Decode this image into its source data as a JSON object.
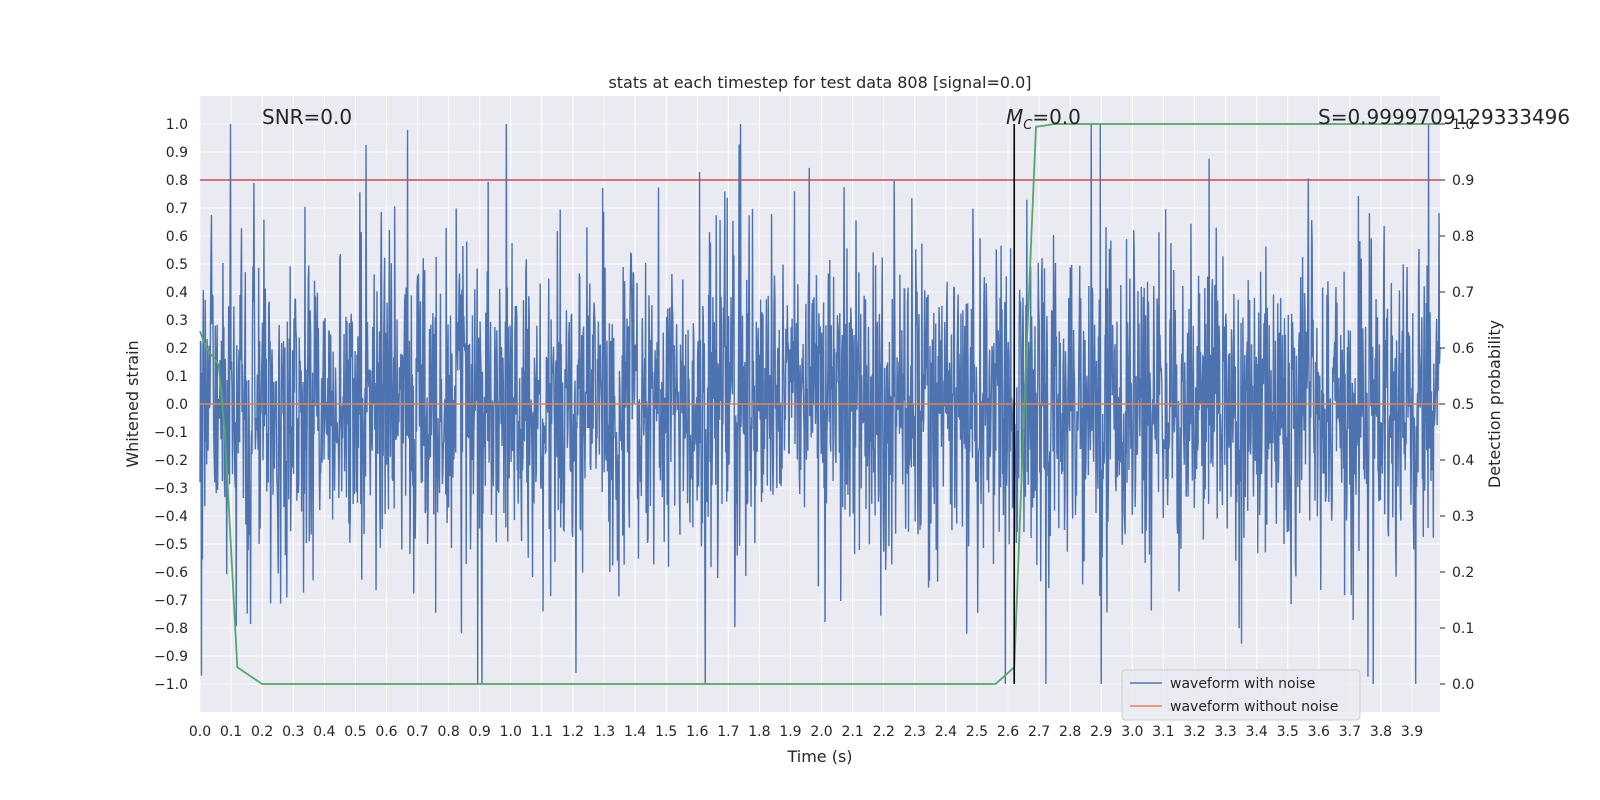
{
  "chart_data": {
    "type": "line",
    "title": "stats at each timestep for test data 808 [signal=0.0]",
    "xlabel": "Time (s)",
    "ylabel": "Whitened strain",
    "y2label": "Detection probability",
    "xlim": [
      0.0,
      3.99
    ],
    "ylim": [
      -1.1,
      1.1
    ],
    "y2lim": [
      -0.05,
      1.05
    ],
    "xticks": [
      0.0,
      0.1,
      0.2,
      0.3,
      0.4,
      0.5,
      0.6,
      0.7,
      0.8,
      0.9,
      1.0,
      1.1,
      1.2,
      1.3,
      1.4,
      1.5,
      1.6,
      1.7,
      1.8,
      1.9,
      2.0,
      2.1,
      2.2,
      2.3,
      2.4,
      2.5,
      2.6,
      2.7,
      2.8,
      2.9,
      3.0,
      3.1,
      3.2,
      3.3,
      3.4,
      3.5,
      3.6,
      3.7,
      3.8,
      3.9
    ],
    "yticks": [
      -1.0,
      -0.9,
      -0.8,
      -0.7,
      -0.6,
      -0.5,
      -0.4,
      -0.3,
      -0.2,
      -0.1,
      0.0,
      0.1,
      0.2,
      0.3,
      0.4,
      0.5,
      0.6,
      0.7,
      0.8,
      0.9,
      1.0
    ],
    "y2ticks": [
      0.0,
      0.1,
      0.2,
      0.3,
      0.4,
      0.5,
      0.6,
      0.7,
      0.8,
      0.9,
      1.0
    ],
    "grid": true,
    "legend_position": "lower-right",
    "annotations": {
      "snr": "SNR=0.0",
      "mc": "=0.0",
      "mc_symbol": "M",
      "mc_sub": "C",
      "s": "S=0.9999709129333496"
    },
    "series": [
      {
        "name": "waveform with noise",
        "color": "#4c72b0",
        "noise_amplitude": 1.0
      },
      {
        "name": "waveform without noise",
        "color": "#dd8452",
        "x": [
          0.0,
          3.99
        ],
        "y": [
          0.0,
          0.0
        ]
      },
      {
        "color": "#55a868",
        "axis": "right",
        "x": [
          0.0,
          0.02,
          0.06,
          0.08,
          0.12,
          0.2,
          0.25,
          0.5,
          1.0,
          1.5,
          2.0,
          2.5,
          2.56,
          2.6,
          2.62,
          2.66,
          2.69,
          2.75,
          3.0,
          3.5,
          3.99
        ],
        "y": [
          0.63,
          0.6,
          0.57,
          0.45,
          0.03,
          0.0,
          0.0,
          0.0,
          0.0,
          0.0,
          0.0,
          0.0,
          0.0,
          0.02,
          0.03,
          0.6,
          0.995,
          1.0,
          1.0,
          1.0,
          1.0
        ]
      }
    ],
    "threshold": {
      "color": "#c44e52",
      "y2": 0.9
    },
    "vline": {
      "color": "#000000",
      "x": 2.62,
      "ymin": -1.0,
      "ymax": 1.0
    }
  }
}
